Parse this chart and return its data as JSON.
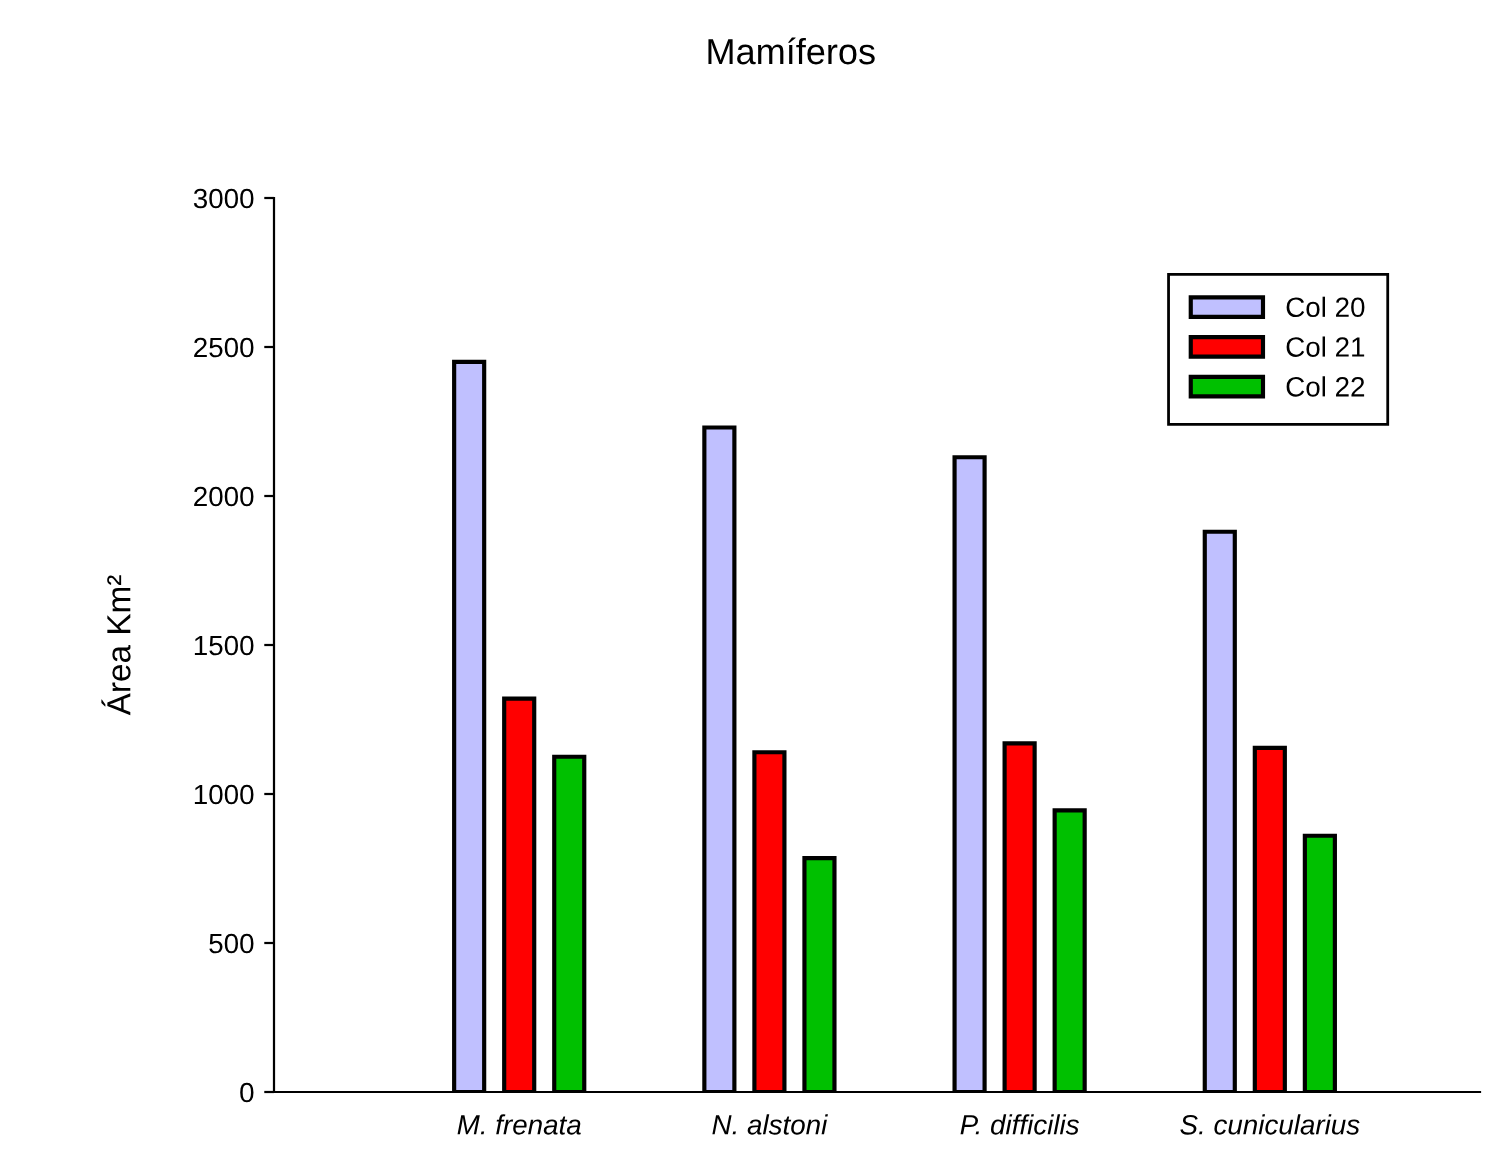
{
  "chart_data": {
    "type": "bar",
    "title": "Mamíferos",
    "ylabel": "Área Km²",
    "categories": [
      "M. frenata",
      "N. alstoni",
      "P. difficilis",
      "S. cunicularius"
    ],
    "series": [
      {
        "name": "Col 20",
        "color": "#c0c0ff",
        "values": [
          2450,
          2230,
          2130,
          1880
        ]
      },
      {
        "name": "Col 21",
        "color": "#ff0000",
        "values": [
          1320,
          1140,
          1170,
          1155
        ]
      },
      {
        "name": "Col 22",
        "color": "#00c000",
        "values": [
          1125,
          785,
          945,
          860
        ]
      }
    ],
    "ylim": [
      0,
      3000
    ],
    "yticks": [
      0,
      500,
      1000,
      1500,
      2000,
      2500,
      3000
    ],
    "grid": false,
    "legend": "top right"
  }
}
